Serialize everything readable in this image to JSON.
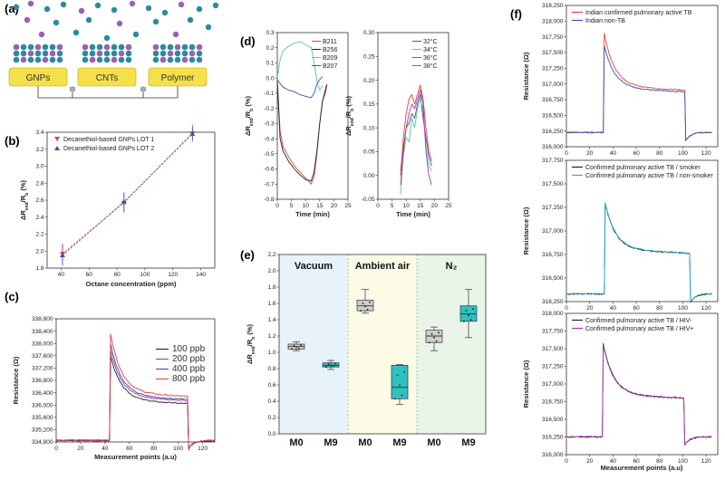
{
  "colors": {
    "red": "#e8403a",
    "blue": "#3f4fb0",
    "black": "#222222",
    "purple": "#a63bb0",
    "cyan": "#2ab0c8",
    "green": "#5cc98a",
    "teal": "#2fc1c1",
    "gray": "#cfcfcf",
    "gold": "#f5e04a",
    "molA": "#2a8ba0",
    "molB": "#9b5fb5"
  },
  "panels": {
    "a": {
      "label": "(a)",
      "layers": [
        "GNPs",
        "CNTs",
        "Polymer"
      ]
    },
    "b": {
      "label": "(b)",
      "chart_data": {
        "type": "scatter",
        "xlabel": "Octane concentration (ppm)",
        "ylabel": "ΔR_end/R_b (%)",
        "xlim": [
          30,
          150
        ],
        "ylim": [
          1.8,
          3.4
        ],
        "xticks": [
          40,
          60,
          80,
          100,
          120,
          140
        ],
        "yticks": [
          1.8,
          2.0,
          2.2,
          2.4,
          2.6,
          2.8,
          3.0,
          3.2,
          3.4
        ],
        "legend": "top-left",
        "series": [
          {
            "name": "Decanethiol-based GNPs LOT 1",
            "color": "#e8403a",
            "x": [
              41,
              85,
              134
            ],
            "y": [
              1.97,
              2.57,
              3.39
            ],
            "err": [
              0.12,
              0.12,
              0.1
            ]
          },
          {
            "name": "Decanethiol-based GNPs LOT 2",
            "color": "#3f4fb0",
            "x": [
              41,
              85,
              134
            ],
            "y": [
              1.95,
              2.58,
              3.38
            ],
            "err": [
              0.12,
              0.11,
              0.08
            ]
          }
        ]
      }
    },
    "c": {
      "label": "(c)",
      "chart_data": {
        "type": "line",
        "xlabel": "Measurement points (a.u)",
        "ylabel": "Resistance (Ω)",
        "xlim": [
          0,
          130
        ],
        "ylim": [
          334800,
          338800
        ],
        "xticks": [
          0,
          20,
          40,
          60,
          80,
          100,
          120
        ],
        "yticks": [
          "334,800",
          "335,200",
          "335,600",
          "336,000",
          "336,400",
          "336,800",
          "337,200",
          "337,600",
          "338,000",
          "338,400",
          "338,800"
        ],
        "legend": "right",
        "series": [
          {
            "name": "100 ppb",
            "color": "#222222",
            "base": 334840,
            "peak": 337700,
            "plateau": 336150
          },
          {
            "name": "200 ppb",
            "color": "#a63bb0",
            "base": 334850,
            "peak": 337900,
            "plateau": 336250
          },
          {
            "name": "400 ppb",
            "color": "#3f4fb0",
            "base": 334855,
            "peak": 338100,
            "plateau": 336300
          },
          {
            "name": "800 ppb",
            "color": "#e8403a",
            "base": 334860,
            "peak": 338450,
            "plateau": 336400
          }
        ],
        "on": 44,
        "off": 108
      }
    },
    "d": {
      "label": "(d)",
      "charts": [
        {
          "type": "line",
          "xlabel": "Time (min)",
          "ylabel": "ΔR_end/R_b (%)",
          "xlim": [
            0,
            25
          ],
          "ylim": [
            -0.8,
            0.3
          ],
          "xticks": [
            0,
            5,
            10,
            15,
            20,
            25
          ],
          "yticks": [
            "-0.8",
            "-0.7",
            "-0.6",
            "-0.5",
            "-0.4",
            "-0.3",
            "-0.2",
            "-0.1",
            "0.0",
            "0.1",
            "0.2",
            "0.3"
          ],
          "legend": "top-right",
          "series": [
            {
              "name": "B211",
              "color": "#e8403a"
            },
            {
              "name": "B256",
              "color": "#222222"
            },
            {
              "name": "B209",
              "color": "#5cc98a"
            },
            {
              "name": "B207",
              "color": "#3f4fb0"
            }
          ]
        },
        {
          "type": "line",
          "xlabel": "Time (min)",
          "ylabel": "",
          "xlim": [
            0,
            25
          ],
          "ylim": [
            -0.05,
            0.3
          ],
          "xticks": [
            0,
            5,
            10,
            15,
            20,
            25
          ],
          "yticks": [
            "-0.05",
            "0.00",
            "0.05",
            "0.10",
            "0.15",
            "0.20",
            "0.25",
            "0.30"
          ],
          "legend": "top-right",
          "series": [
            {
              "name": "32°C",
              "color": "#3f4fb0"
            },
            {
              "name": "34°C",
              "color": "#5cc98a"
            },
            {
              "name": "36°C",
              "color": "#a63bb0"
            },
            {
              "name": "38°C",
              "color": "#e8403a"
            }
          ]
        }
      ]
    },
    "e": {
      "label": "(e)",
      "chart_data": {
        "type": "box",
        "ylabel": "ΔR_end/R_b (%)",
        "ylim": [
          0.0,
          2.2
        ],
        "yticks": [
          "0.0",
          "0.2",
          "0.4",
          "0.6",
          "0.8",
          "1.0",
          "1.2",
          "1.4",
          "1.6",
          "1.8",
          "2.0",
          "2.2"
        ],
        "groups": [
          "Vacuum",
          "Ambient air",
          "N₂"
        ],
        "categories": [
          "M0",
          "M9",
          "M0",
          "M9",
          "M0",
          "M9"
        ],
        "boxes": [
          {
            "min": 1.02,
            "q1": 1.04,
            "med": 1.07,
            "q3": 1.1,
            "max": 1.13,
            "color": "#cfcfcf"
          },
          {
            "min": 0.79,
            "q1": 0.82,
            "med": 0.84,
            "q3": 0.87,
            "max": 0.9,
            "color": "#2fc1c1"
          },
          {
            "min": 1.48,
            "q1": 1.51,
            "med": 1.57,
            "q3": 1.64,
            "max": 1.77,
            "color": "#cfcfcf"
          },
          {
            "min": 0.36,
            "q1": 0.43,
            "med": 0.57,
            "q3": 0.84,
            "max": 0.85,
            "color": "#2fc1c1"
          },
          {
            "min": 1.02,
            "q1": 1.12,
            "med": 1.2,
            "q3": 1.27,
            "max": 1.31,
            "color": "#cfcfcf"
          },
          {
            "min": 1.18,
            "q1": 1.38,
            "med": 1.47,
            "q3": 1.57,
            "max": 1.77,
            "color": "#2fc1c1"
          }
        ]
      }
    },
    "f": {
      "label": "(f)",
      "xlabel": "Measurement points (a.u)",
      "ylabel": "Resistance (Ω)",
      "xticks": [
        0,
        20,
        40,
        60,
        80,
        100,
        120
      ],
      "charts": [
        {
          "type": "line",
          "ylim": [
            316000,
            318250
          ],
          "yticks": [
            "316,000",
            "316,250",
            "316,500",
            "316,750",
            "317,000",
            "317,250",
            "317,500",
            "317,750",
            "318,000",
            "318,250"
          ],
          "legend": "top",
          "series": [
            {
              "name": "Indian confirmed pulmonary active TB",
              "color": "#e8403a",
              "base": 316230,
              "peak": 317850,
              "plateau": 316960
            },
            {
              "name": "Indian non-TB",
              "color": "#3f4fb0",
              "base": 316225,
              "peak": 317650,
              "plateau": 316930
            }
          ],
          "on": 32,
          "off": 102
        },
        {
          "type": "line",
          "ylim": [
            316250,
            317750
          ],
          "yticks": [
            "316,250",
            "316,500",
            "316,750",
            "317,000",
            "317,250",
            "317,500",
            "317,750"
          ],
          "legend": "top",
          "series": [
            {
              "name": "Confirmed pulmonary active TB / smoker",
              "color": "#222222",
              "base": 316330,
              "peak": 317310,
              "plateau": 316800
            },
            {
              "name": "Confirmed pulmonary active TB / non-smoker",
              "color": "#2ab0c8",
              "base": 316335,
              "peak": 317320,
              "plateau": 316805
            }
          ],
          "on": 33,
          "off": 106
        },
        {
          "type": "line",
          "ylim": [
            316000,
            318000
          ],
          "yticks": [
            "316,000",
            "316,250",
            "316,500",
            "316,750",
            "317,000",
            "317,250",
            "317,500",
            "317,750",
            "318,000"
          ],
          "legend": "top",
          "series": [
            {
              "name": "Confirmed pulmonary active TB / HIV-",
              "color": "#222222",
              "base": 316250,
              "peak": 317620,
              "plateau": 316850
            },
            {
              "name": "Confirmed pulmonary active TB / HIV+",
              "color": "#a63bb0",
              "base": 316255,
              "peak": 317600,
              "plateau": 316845
            }
          ],
          "on": 31,
          "off": 101
        }
      ]
    }
  }
}
